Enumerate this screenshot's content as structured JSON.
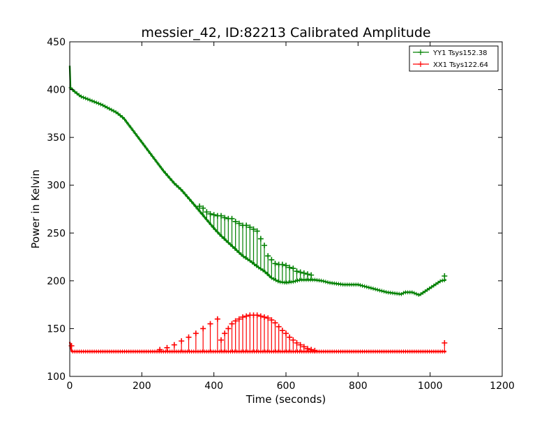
{
  "chart_data": {
    "type": "line",
    "title": "messier_42, ID:82213 Calibrated Amplitude",
    "xlabel": "Time (seconds)",
    "ylabel": "Power in Kelvin",
    "xlim": [
      0,
      1200
    ],
    "ylim": [
      100,
      450
    ],
    "xticks": [
      0,
      200,
      400,
      600,
      800,
      1000,
      1200
    ],
    "yticks": [
      100,
      150,
      200,
      250,
      300,
      350,
      400,
      450
    ],
    "grid": false,
    "legend_position": "top-right",
    "marker": "+",
    "series": [
      {
        "name": "YY1 Tsys152.38",
        "color": "#008000",
        "baseline": [
          [
            0,
            425
          ],
          [
            2,
            402
          ],
          [
            10,
            399
          ],
          [
            20,
            396
          ],
          [
            30,
            393
          ],
          [
            50,
            390
          ],
          [
            70,
            387
          ],
          [
            90,
            384
          ],
          [
            110,
            380
          ],
          [
            130,
            376
          ],
          [
            150,
            370
          ],
          [
            170,
            360
          ],
          [
            200,
            345
          ],
          [
            230,
            330
          ],
          [
            260,
            315
          ],
          [
            290,
            302
          ],
          [
            310,
            295
          ],
          [
            340,
            282
          ],
          [
            360,
            273
          ],
          [
            380,
            264
          ],
          [
            400,
            255
          ],
          [
            420,
            247
          ],
          [
            440,
            240
          ],
          [
            460,
            233
          ],
          [
            480,
            226
          ],
          [
            500,
            221
          ],
          [
            520,
            215
          ],
          [
            540,
            210
          ],
          [
            560,
            203
          ],
          [
            580,
            199
          ],
          [
            600,
            198
          ],
          [
            620,
            199
          ],
          [
            640,
            201
          ],
          [
            660,
            201
          ],
          [
            680,
            201
          ],
          [
            700,
            200
          ],
          [
            720,
            198
          ],
          [
            740,
            197
          ],
          [
            760,
            196
          ],
          [
            780,
            196
          ],
          [
            800,
            196
          ],
          [
            820,
            194
          ],
          [
            840,
            192
          ],
          [
            860,
            190
          ],
          [
            880,
            188
          ],
          [
            900,
            187
          ],
          [
            920,
            186
          ],
          [
            930,
            188
          ],
          [
            950,
            188
          ],
          [
            970,
            185
          ],
          [
            990,
            190
          ],
          [
            1010,
            195
          ],
          [
            1030,
            200
          ],
          [
            1045,
            201
          ]
        ],
        "spikes": [
          [
            360,
            278
          ],
          [
            370,
            276
          ],
          [
            380,
            272
          ],
          [
            390,
            270
          ],
          [
            400,
            269
          ],
          [
            410,
            268
          ],
          [
            420,
            268
          ],
          [
            430,
            266
          ],
          [
            440,
            265
          ],
          [
            450,
            265
          ],
          [
            460,
            262
          ],
          [
            470,
            260
          ],
          [
            480,
            258
          ],
          [
            490,
            258
          ],
          [
            500,
            256
          ],
          [
            510,
            254
          ],
          [
            520,
            252
          ],
          [
            530,
            244
          ],
          [
            540,
            237
          ],
          [
            550,
            226
          ],
          [
            560,
            222
          ],
          [
            570,
            218
          ],
          [
            580,
            217
          ],
          [
            590,
            217
          ],
          [
            600,
            216
          ],
          [
            610,
            214
          ],
          [
            620,
            213
          ],
          [
            630,
            210
          ],
          [
            640,
            209
          ],
          [
            650,
            208
          ],
          [
            660,
            207
          ],
          [
            670,
            206
          ],
          [
            1040,
            205
          ]
        ]
      },
      {
        "name": "XX1 Tsys122.64",
        "color": "#ff0000",
        "baseline": [
          [
            0,
            136
          ],
          [
            5,
            126
          ],
          [
            1045,
            126
          ]
        ],
        "spikes": [
          [
            5,
            132
          ],
          [
            250,
            128
          ],
          [
            270,
            130
          ],
          [
            290,
            133
          ],
          [
            310,
            137
          ],
          [
            330,
            141
          ],
          [
            350,
            145
          ],
          [
            370,
            150
          ],
          [
            390,
            155
          ],
          [
            410,
            160
          ],
          [
            420,
            138
          ],
          [
            430,
            145
          ],
          [
            440,
            150
          ],
          [
            450,
            155
          ],
          [
            460,
            158
          ],
          [
            470,
            160
          ],
          [
            480,
            162
          ],
          [
            490,
            163
          ],
          [
            500,
            164
          ],
          [
            510,
            164
          ],
          [
            520,
            164
          ],
          [
            530,
            163
          ],
          [
            540,
            162
          ],
          [
            550,
            161
          ],
          [
            560,
            159
          ],
          [
            570,
            156
          ],
          [
            580,
            152
          ],
          [
            590,
            148
          ],
          [
            600,
            145
          ],
          [
            610,
            141
          ],
          [
            620,
            138
          ],
          [
            630,
            135
          ],
          [
            640,
            133
          ],
          [
            650,
            131
          ],
          [
            660,
            129
          ],
          [
            670,
            128
          ],
          [
            680,
            127
          ],
          [
            1040,
            135
          ]
        ]
      }
    ]
  }
}
